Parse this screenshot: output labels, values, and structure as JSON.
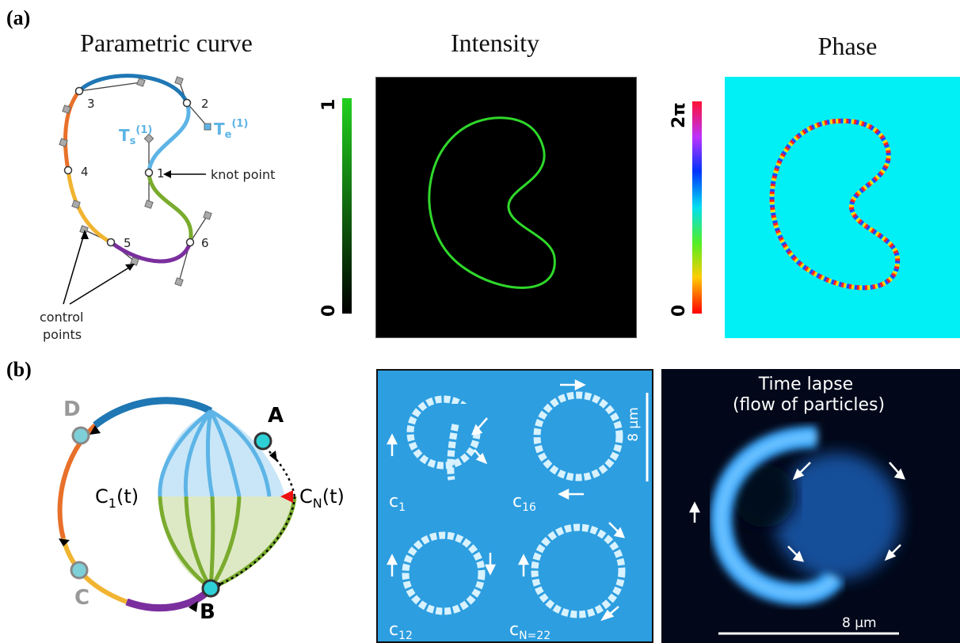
{
  "panel_a": {
    "label": "(a)",
    "titles": {
      "parametric": "Parametric curve",
      "intensity": "Intensity",
      "phase": "Phase"
    },
    "knot_labels": [
      "1",
      "2",
      "3",
      "4",
      "5",
      "6"
    ],
    "ts_label": "T",
    "ts_sub": "s",
    "ts_sup": "(1)",
    "te_label": "T",
    "te_sub": "e",
    "te_sup": "(1)",
    "knot_point_label": "knot point",
    "control_points_label": [
      "control",
      "points"
    ],
    "intensity_scale": {
      "max": "1",
      "min": "0"
    },
    "phase_scale": {
      "max": "2π",
      "min": "0"
    }
  },
  "panel_b": {
    "label": "(b)",
    "point_labels": {
      "a": "A",
      "b": "B",
      "c": "C",
      "d": "D"
    },
    "c1_label": {
      "base": "C",
      "sub": "1",
      "rest": "(t)"
    },
    "cn_label": {
      "base": "C",
      "sub": "N",
      "rest": "(t)"
    },
    "micro_labels": {
      "c1": {
        "base": "c",
        "sub": "1"
      },
      "c16": {
        "base": "c",
        "sub": "16"
      },
      "c12": {
        "base": "c",
        "sub": "12"
      },
      "cn": {
        "base": "c",
        "sub": "N=22"
      }
    },
    "micro_scale": "8 µm",
    "timelapse_title": [
      "Time lapse",
      "(flow of particles)"
    ],
    "timelapse_scale": "8 µm"
  },
  "colors": {
    "blue": "#1f77b4",
    "light_blue": "#5db4e6",
    "green": "#7aab2e",
    "purple": "#7b2f9e",
    "orange": "#e8702a",
    "yellow": "#f1b431",
    "cyan_bg": "#00f0f5",
    "micro_bg": "#2d9ee0",
    "dark_bg": "#02081a"
  }
}
